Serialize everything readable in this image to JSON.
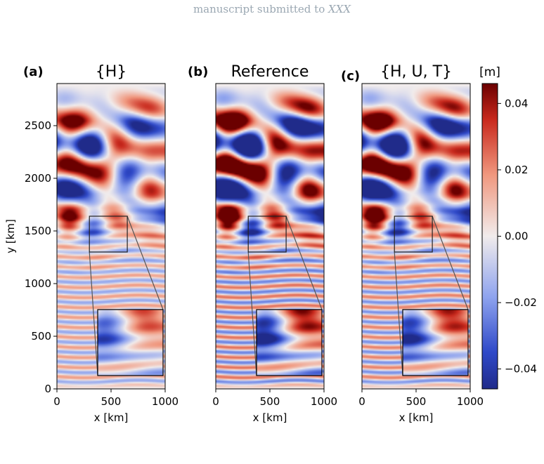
{
  "header": {
    "prefix": "manuscript submitted to ",
    "journal": "XXX"
  },
  "chart_data": [
    {
      "type": "heatmap",
      "panel_label": "(a)",
      "title": "{H}",
      "xlabel": "x [km]",
      "ylabel": "y [km]",
      "xlim": [
        0,
        1000
      ],
      "ylim": [
        0,
        2900
      ],
      "xticks": [
        0,
        500,
        1000
      ],
      "yticks": [
        0,
        500,
        1000,
        1500,
        2000,
        2500
      ],
      "inset_region": {
        "x": [
          300,
          650
        ],
        "y": [
          1300,
          1640
        ]
      },
      "colormap": "seismic",
      "amplitude_scale": 0.7
    },
    {
      "type": "heatmap",
      "panel_label": "(b)",
      "title": "Reference",
      "xlabel": "x [km]",
      "xlim": [
        0,
        1000
      ],
      "ylim": [
        0,
        2900
      ],
      "xticks": [
        0,
        500,
        1000
      ],
      "inset_region": {
        "x": [
          300,
          650
        ],
        "y": [
          1300,
          1640
        ]
      },
      "colormap": "seismic",
      "amplitude_scale": 1.0
    },
    {
      "type": "heatmap",
      "panel_label": "(c)",
      "title": "{H, U, T}",
      "xlabel": "x [km]",
      "xlim": [
        0,
        1000
      ],
      "ylim": [
        0,
        2900
      ],
      "xticks": [
        0,
        500,
        1000
      ],
      "inset_region": {
        "x": [
          300,
          650
        ],
        "y": [
          1300,
          1640
        ]
      },
      "colormap": "seismic",
      "amplitude_scale": 0.9
    }
  ],
  "colorbar": {
    "unit_label": "[m]",
    "range": [
      -0.046,
      0.046
    ],
    "ticks": [
      -0.04,
      -0.02,
      0.0,
      0.02,
      0.04
    ],
    "tick_labels": [
      "−0.04",
      "−0.02",
      "0.00",
      "0.02",
      "0.04"
    ],
    "colors": {
      "low": "#2b1f8a",
      "mid": "#f1ecec",
      "high": "#6b0000"
    }
  }
}
